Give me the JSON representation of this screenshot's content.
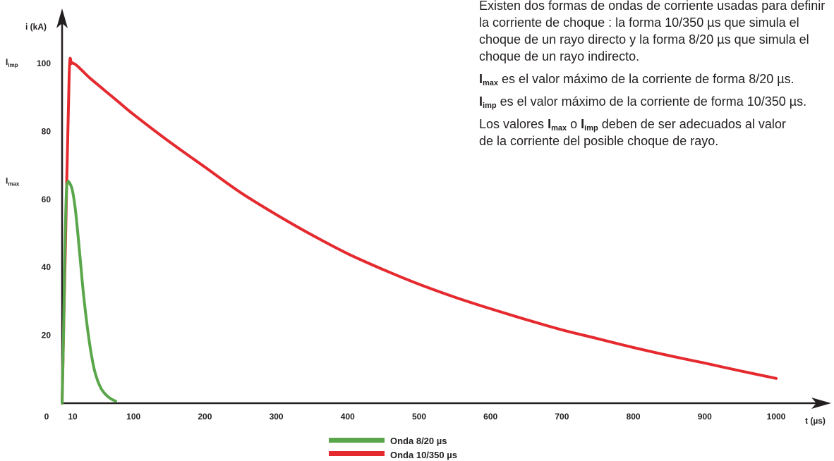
{
  "description": {
    "intro_lines": [
      "Existen dos formas de ondas de corriente usadas para definir",
      "la corriente de choque : la forma 10/350 µs que simula el",
      "choque de un rayo directo y la forma 8/20 µs que simula el",
      "choque de un rayo indirecto."
    ],
    "imax_symbol": "I",
    "imax_sub": "max",
    "imax_text": " es el valor máximo de la corriente de forma 8/20 µs.",
    "iimp_symbol": "I",
    "iimp_sub": "imp",
    "iimp_text": " es el valor máximo de la corriente de forma 10/350 µs.",
    "values_prefix": "Los valores ",
    "values_sym1": "I",
    "values_sub1": "max",
    "values_mid": " o ",
    "values_sym2": "I",
    "values_sub2": "imp",
    "values_suffix": " deben de ser adecuados al valor",
    "values_line2": "de la corriente del posible choque de rayo."
  },
  "chart_data": {
    "type": "line",
    "ylabel": "i (kA)",
    "xlabel": "t (µs)",
    "xlim": [
      0,
      1000
    ],
    "ylim": [
      0,
      100
    ],
    "x_ticks": [
      {
        "value": 0,
        "label": "0"
      },
      {
        "value": 10,
        "label": "10"
      },
      {
        "value": 100,
        "label": "100"
      },
      {
        "value": 200,
        "label": "200"
      },
      {
        "value": 300,
        "label": "300"
      },
      {
        "value": 400,
        "label": "400"
      },
      {
        "value": 500,
        "label": "500"
      },
      {
        "value": 600,
        "label": "600"
      },
      {
        "value": 700,
        "label": "700"
      },
      {
        "value": 800,
        "label": "800"
      },
      {
        "value": 900,
        "label": "900"
      },
      {
        "value": 1000,
        "label": "1000"
      }
    ],
    "y_ticks": [
      {
        "value": 20,
        "label": "20"
      },
      {
        "value": 40,
        "label": "40"
      },
      {
        "value": 60,
        "label": "60"
      },
      {
        "value": 80,
        "label": "80"
      },
      {
        "value": 100,
        "label": "100"
      }
    ],
    "y_markers": [
      {
        "value": 100,
        "symbol": "I",
        "sub": "imp"
      },
      {
        "value": 65,
        "symbol": "I",
        "sub": "max"
      }
    ],
    "grid": false,
    "legend_position": "bottom-center",
    "series": [
      {
        "name": "Onda 8/20 µs",
        "color": "#5aa64a",
        "x": [
          0,
          2,
          4,
          6,
          8,
          10,
          14,
          18,
          22,
          26,
          30,
          35,
          40,
          45,
          50,
          55,
          60,
          65,
          70,
          75
        ],
        "y": [
          0,
          20,
          45,
          62,
          65,
          65,
          63,
          58,
          50,
          41,
          32,
          23,
          15.5,
          10,
          6.5,
          4.2,
          2.8,
          1.8,
          1.1,
          0.6
        ]
      },
      {
        "name": "Onda 10/350 µs",
        "color": "#e52a2f",
        "x": [
          0,
          5,
          10,
          13,
          16,
          20,
          30,
          40,
          60,
          80,
          100,
          150,
          200,
          250,
          300,
          350,
          400,
          450,
          500,
          550,
          600,
          650,
          700,
          750,
          800,
          850,
          900,
          950,
          1000
        ],
        "y": [
          0,
          50,
          97,
          100,
          100,
          99.5,
          97.5,
          95.5,
          92,
          88.5,
          85,
          77,
          69.5,
          62,
          55.5,
          49.5,
          44,
          39.3,
          35,
          31.2,
          27.8,
          24.6,
          21.6,
          19,
          16.4,
          14,
          11.8,
          9.5,
          7.3
        ]
      }
    ]
  }
}
